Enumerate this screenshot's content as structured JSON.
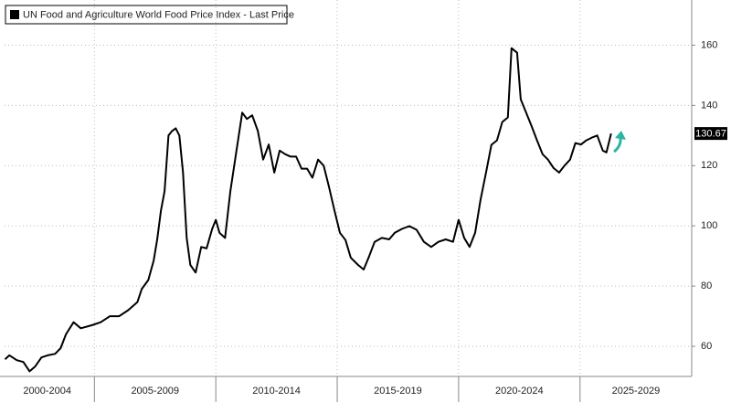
{
  "chart_data": {
    "type": "line",
    "series": [
      {
        "name": "UN Food and Agriculture World Food Price Index - Last Price",
        "color": "#000000",
        "x": [
          2001.32,
          2001.5,
          2001.8,
          2002.07,
          2002.33,
          2002.56,
          2002.82,
          2003.08,
          2003.38,
          2003.61,
          2003.83,
          2004.14,
          2004.44,
          2004.89,
          2005.26,
          2005.64,
          2006.02,
          2006.39,
          2006.77,
          2006.95,
          2007.22,
          2007.44,
          2007.59,
          2007.74,
          2007.89,
          2008.05,
          2008.2,
          2008.35,
          2008.5,
          2008.65,
          2008.8,
          2008.95,
          2009.17,
          2009.4,
          2009.62,
          2009.85,
          2010.0,
          2010.15,
          2010.38,
          2010.6,
          2010.83,
          2011.09,
          2011.28,
          2011.5,
          2011.73,
          2011.95,
          2012.18,
          2012.41,
          2012.63,
          2012.86,
          2013.08,
          2013.31,
          2013.53,
          2013.76,
          2013.98,
          2014.21,
          2014.44,
          2014.66,
          2014.89,
          2015.11,
          2015.34,
          2015.56,
          2015.86,
          2016.09,
          2016.32,
          2016.54,
          2016.84,
          2017.14,
          2017.37,
          2017.67,
          2017.97,
          2018.27,
          2018.57,
          2018.87,
          2019.17,
          2019.47,
          2019.77,
          2020.0,
          2020.23,
          2020.45,
          2020.68,
          2020.9,
          2021.13,
          2021.35,
          2021.58,
          2021.8,
          2022.03,
          2022.18,
          2022.41,
          2022.56,
          2022.78,
          2023.01,
          2023.23,
          2023.46,
          2023.68,
          2023.91,
          2024.14,
          2024.36,
          2024.59,
          2024.81,
          2025.04,
          2025.26,
          2025.49,
          2025.71,
          2025.94,
          2026.09,
          2026.28
        ],
        "values": [
          55.7,
          57,
          55.4,
          54.8,
          51.7,
          53.3,
          56.3,
          57,
          57.5,
          59.4,
          64,
          68,
          66,
          67,
          68,
          70,
          70,
          72,
          74.7,
          79,
          82,
          88.5,
          95.6,
          105,
          111.5,
          130,
          131.5,
          132.4,
          130,
          117.7,
          96,
          87,
          84.5,
          93,
          92.5,
          99,
          102,
          97.7,
          96,
          111.5,
          123.8,
          137.6,
          135.5,
          136.7,
          131.5,
          122,
          127,
          117.7,
          125,
          123.8,
          123,
          123,
          119,
          119,
          116,
          122,
          120,
          113,
          105,
          97.7,
          95.3,
          89.4,
          87,
          85.5,
          90,
          94.7,
          96,
          95.5,
          97.7,
          99,
          99.9,
          98.7,
          94.7,
          93,
          94.7,
          95.5,
          94.7,
          102,
          96,
          93,
          97.7,
          108.5,
          117.7,
          126.9,
          128.4,
          134.5,
          136,
          159,
          157.5,
          142,
          137.6,
          133,
          128.4,
          123.8,
          122,
          119.2,
          117.7,
          120,
          122,
          127.5,
          127,
          128.4,
          129.3,
          130,
          125,
          124.4,
          130.67
        ]
      }
    ],
    "periods": [
      {
        "label": "2000-2004",
        "from": 2000,
        "to": 2005
      },
      {
        "label": "2005-2009",
        "from": 2005,
        "to": 2010
      },
      {
        "label": "2010-2014",
        "from": 2010,
        "to": 2015
      },
      {
        "label": "2015-2019",
        "from": 2015,
        "to": 2020
      },
      {
        "label": "2020-2024",
        "from": 2020,
        "to": 2025
      },
      {
        "label": "2025-2029",
        "from": 2025,
        "to": 2030
      }
    ],
    "xlim": [
      2001.3,
      2029.6
    ],
    "xticks": [
      2005,
      2010,
      2015,
      2020,
      2025
    ],
    "ylim": [
      50,
      175
    ],
    "yticks": [
      60,
      80,
      100,
      120,
      140,
      160
    ],
    "grid": true
  }
}
